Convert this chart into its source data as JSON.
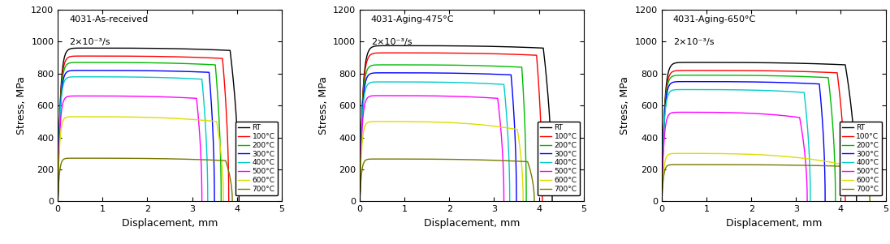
{
  "panels": [
    {
      "title": "4031-As-received",
      "strain_rate": "2×10⁻³/s",
      "curves": [
        {
          "label": "RT",
          "color": "#000000",
          "peak_stress": 960,
          "plateau_stress": 945,
          "rise_end": 0.52,
          "plateau_end": 3.85,
          "drop_end": 4.05
        },
        {
          "label": "100°C",
          "color": "#ff0000",
          "peak_stress": 910,
          "plateau_stress": 895,
          "rise_end": 0.5,
          "plateau_end": 3.68,
          "drop_end": 3.82
        },
        {
          "label": "200°C",
          "color": "#00bb00",
          "peak_stress": 870,
          "plateau_stress": 855,
          "rise_end": 0.48,
          "plateau_end": 3.52,
          "drop_end": 3.65
        },
        {
          "label": "300°C",
          "color": "#0000ff",
          "peak_stress": 820,
          "plateau_stress": 808,
          "rise_end": 0.46,
          "plateau_end": 3.38,
          "drop_end": 3.5
        },
        {
          "label": "400°C",
          "color": "#00cccc",
          "peak_stress": 780,
          "plateau_stress": 765,
          "rise_end": 0.44,
          "plateau_end": 3.22,
          "drop_end": 3.35
        },
        {
          "label": "500°C",
          "color": "#ff00ff",
          "peak_stress": 660,
          "plateau_stress": 645,
          "rise_end": 0.42,
          "plateau_end": 3.1,
          "drop_end": 3.22
        },
        {
          "label": "600°C",
          "color": "#dddd00",
          "peak_stress": 530,
          "plateau_stress": 500,
          "rise_end": 0.38,
          "plateau_end": 3.55,
          "drop_end": 3.7
        },
        {
          "label": "700°C",
          "color": "#777700",
          "peak_stress": 270,
          "plateau_stress": 255,
          "rise_end": 0.35,
          "plateau_end": 3.75,
          "drop_end": 3.9
        }
      ]
    },
    {
      "title": "4031-Aging-475°C",
      "strain_rate": "2×10⁻³/s",
      "curves": [
        {
          "label": "RT",
          "color": "#000000",
          "peak_stress": 975,
          "plateau_stress": 960,
          "rise_end": 0.58,
          "plateau_end": 4.1,
          "drop_end": 4.3
        },
        {
          "label": "100°C",
          "color": "#ff0000",
          "peak_stress": 930,
          "plateau_stress": 915,
          "rise_end": 0.55,
          "plateau_end": 3.95,
          "drop_end": 4.08
        },
        {
          "label": "200°C",
          "color": "#00bb00",
          "peak_stress": 855,
          "plateau_stress": 840,
          "rise_end": 0.5,
          "plateau_end": 3.62,
          "drop_end": 3.72
        },
        {
          "label": "300°C",
          "color": "#0000ff",
          "peak_stress": 805,
          "plateau_stress": 792,
          "rise_end": 0.48,
          "plateau_end": 3.38,
          "drop_end": 3.5
        },
        {
          "label": "400°C",
          "color": "#00cccc",
          "peak_stress": 748,
          "plateau_stress": 732,
          "rise_end": 0.46,
          "plateau_end": 3.22,
          "drop_end": 3.35
        },
        {
          "label": "500°C",
          "color": "#ff00ff",
          "peak_stress": 662,
          "plateau_stress": 645,
          "rise_end": 0.44,
          "plateau_end": 3.08,
          "drop_end": 3.22
        },
        {
          "label": "600°C",
          "color": "#dddd00",
          "peak_stress": 500,
          "plateau_stress": 450,
          "rise_end": 0.4,
          "plateau_end": 3.52,
          "drop_end": 3.65
        },
        {
          "label": "700°C",
          "color": "#777700",
          "peak_stress": 265,
          "plateau_stress": 248,
          "rise_end": 0.36,
          "plateau_end": 3.75,
          "drop_end": 3.9
        }
      ]
    },
    {
      "title": "4031-Aging-650°C",
      "strain_rate": "2×10⁻³/s",
      "curves": [
        {
          "label": "RT",
          "color": "#000000",
          "peak_stress": 870,
          "plateau_stress": 855,
          "rise_end": 0.55,
          "plateau_end": 4.1,
          "drop_end": 4.35
        },
        {
          "label": "100°C",
          "color": "#ff0000",
          "peak_stress": 820,
          "plateau_stress": 805,
          "rise_end": 0.52,
          "plateau_end": 3.92,
          "drop_end": 4.1
        },
        {
          "label": "200°C",
          "color": "#00bb00",
          "peak_stress": 790,
          "plateau_stress": 775,
          "rise_end": 0.5,
          "plateau_end": 3.72,
          "drop_end": 3.88
        },
        {
          "label": "300°C",
          "color": "#0000ff",
          "peak_stress": 750,
          "plateau_stress": 735,
          "rise_end": 0.48,
          "plateau_end": 3.52,
          "drop_end": 3.65
        },
        {
          "label": "400°C",
          "color": "#00cccc",
          "peak_stress": 700,
          "plateau_stress": 682,
          "rise_end": 0.46,
          "plateau_end": 3.18,
          "drop_end": 3.32
        },
        {
          "label": "500°C",
          "color": "#ff00ff",
          "peak_stress": 558,
          "plateau_stress": 525,
          "rise_end": 0.44,
          "plateau_end": 3.08,
          "drop_end": 3.25
        },
        {
          "label": "600°C",
          "color": "#dddd00",
          "peak_stress": 300,
          "plateau_stress": 200,
          "rise_end": 0.4,
          "plateau_end": 4.52,
          "drop_end": 4.65
        },
        {
          "label": "700°C",
          "color": "#777700",
          "peak_stress": 230,
          "plateau_stress": 215,
          "rise_end": 0.36,
          "plateau_end": 4.52,
          "drop_end": 4.65
        }
      ]
    }
  ],
  "xlabel": "Displacement, mm",
  "ylabel": "Stress, MPa",
  "xlim": [
    0,
    5
  ],
  "ylim": [
    0,
    1200
  ],
  "yticks": [
    0,
    200,
    400,
    600,
    800,
    1000,
    1200
  ],
  "xticks": [
    0,
    1,
    2,
    3,
    4,
    5
  ],
  "legend_labels": [
    "RT",
    "100°C",
    "200°C",
    "300°C",
    "400°C",
    "500°C",
    "600°C",
    "700°C"
  ],
  "legend_colors": [
    "#000000",
    "#ff0000",
    "#00bb00",
    "#0000ff",
    "#00cccc",
    "#ff00ff",
    "#dddd00",
    "#777700"
  ]
}
